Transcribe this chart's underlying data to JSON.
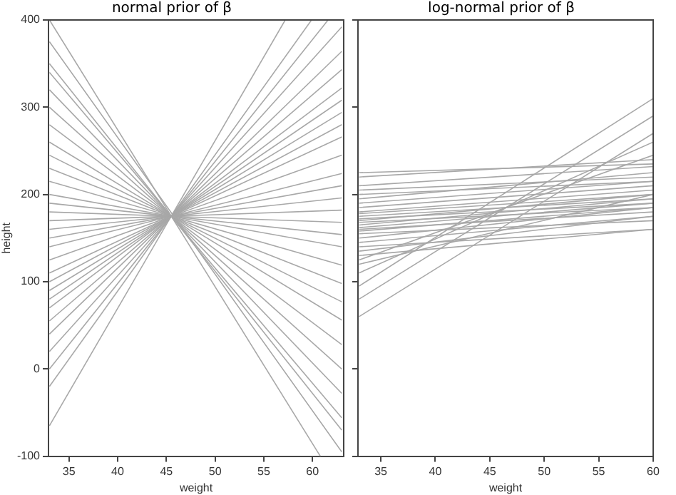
{
  "chart_data": [
    {
      "type": "line",
      "title": "normal prior of β",
      "xlabel": "weight",
      "ylabel": "height",
      "x": [
        33,
        63
      ],
      "xlim": [
        32.9,
        63.2
      ],
      "xticks": [
        35,
        40,
        45,
        50,
        55,
        60
      ],
      "ylim": [
        -100,
        400
      ],
      "yticks": [
        -100,
        0,
        100,
        200,
        300,
        400
      ],
      "grid": false,
      "legend": false,
      "marker": "none",
      "line_style": "solid",
      "series": [
        {
          "color": "#a8a8a8",
          "x": [
            33,
            60.8
          ],
          "values": [
            400,
            -100
          ]
        },
        {
          "color": "#a8a8a8",
          "values": [
            375,
            -95
          ]
        },
        {
          "color": "#a8a8a8",
          "values": [
            350,
            -70
          ]
        },
        {
          "color": "#a8a8a8",
          "values": [
            340,
            -56
          ]
        },
        {
          "color": "#a8a8a8",
          "values": [
            320,
            -28
          ]
        },
        {
          "color": "#a8a8a8",
          "values": [
            300,
            0
          ]
        },
        {
          "color": "#a8a8a8",
          "values": [
            280,
            28
          ]
        },
        {
          "color": "#a8a8a8",
          "values": [
            260,
            56
          ]
        },
        {
          "color": "#a8a8a8",
          "values": [
            245,
            77
          ]
        },
        {
          "color": "#a8a8a8",
          "values": [
            230,
            98
          ]
        },
        {
          "color": "#a8a8a8",
          "values": [
            215,
            119
          ]
        },
        {
          "color": "#a8a8a8",
          "values": [
            200,
            140
          ]
        },
        {
          "color": "#a8a8a8",
          "values": [
            190,
            154
          ]
        },
        {
          "color": "#a8a8a8",
          "values": [
            180,
            168
          ]
        },
        {
          "color": "#a8a8a8",
          "values": [
            170,
            182
          ]
        },
        {
          "color": "#a8a8a8",
          "values": [
            160,
            196
          ]
        },
        {
          "color": "#a8a8a8",
          "values": [
            150,
            210
          ]
        },
        {
          "color": "#a8a8a8",
          "values": [
            140,
            224
          ]
        },
        {
          "color": "#a8a8a8",
          "values": [
            125,
            245
          ]
        },
        {
          "color": "#a8a8a8",
          "values": [
            110,
            266
          ]
        },
        {
          "color": "#a8a8a8",
          "values": [
            100,
            280
          ]
        },
        {
          "color": "#a8a8a8",
          "values": [
            90,
            294
          ]
        },
        {
          "color": "#a8a8a8",
          "values": [
            80,
            308
          ]
        },
        {
          "color": "#a8a8a8",
          "values": [
            70,
            322
          ]
        },
        {
          "color": "#a8a8a8",
          "values": [
            55,
            343
          ]
        },
        {
          "color": "#a8a8a8",
          "values": [
            40,
            364
          ]
        },
        {
          "color": "#a8a8a8",
          "values": [
            20,
            392
          ]
        },
        {
          "color": "#a8a8a8",
          "x": [
            33,
            61.6
          ],
          "values": [
            0,
            400
          ]
        },
        {
          "color": "#a8a8a8",
          "x": [
            33,
            59.9
          ],
          "values": [
            -20,
            400
          ]
        },
        {
          "color": "#a8a8a8",
          "x": [
            33,
            57.2
          ],
          "values": [
            -65,
            400
          ]
        }
      ]
    },
    {
      "type": "line",
      "title": "log-normal prior of β",
      "xlabel": "weight",
      "x": [
        33,
        60
      ],
      "xlim": [
        32.9,
        60
      ],
      "xticks": [
        35,
        40,
        45,
        50,
        55,
        60
      ],
      "ylim": [
        -100,
        400
      ],
      "yticks": [
        -100,
        0,
        100,
        200,
        300,
        400
      ],
      "tick_labels": "x",
      "grid": false,
      "legend": false,
      "marker": "none",
      "line_style": "solid",
      "series": [
        {
          "color": "#a8a8a8",
          "values": [
            225,
            235
          ]
        },
        {
          "color": "#a8a8a8",
          "values": [
            220,
            240
          ]
        },
        {
          "color": "#a8a8a8",
          "values": [
            210,
            232
          ]
        },
        {
          "color": "#a8a8a8",
          "values": [
            205,
            220
          ]
        },
        {
          "color": "#a8a8a8",
          "values": [
            200,
            215
          ]
        },
        {
          "color": "#a8a8a8",
          "values": [
            195,
            225
          ]
        },
        {
          "color": "#a8a8a8",
          "values": [
            190,
            215
          ]
        },
        {
          "color": "#a8a8a8",
          "values": [
            185,
            210
          ]
        },
        {
          "color": "#a8a8a8",
          "values": [
            180,
            205
          ]
        },
        {
          "color": "#a8a8a8",
          "values": [
            178,
            200
          ]
        },
        {
          "color": "#a8a8a8",
          "values": [
            175,
            195
          ]
        },
        {
          "color": "#a8a8a8",
          "values": [
            172,
            190
          ]
        },
        {
          "color": "#a8a8a8",
          "values": [
            170,
            200
          ]
        },
        {
          "color": "#a8a8a8",
          "values": [
            168,
            185
          ]
        },
        {
          "color": "#a8a8a8",
          "values": [
            165,
            195
          ]
        },
        {
          "color": "#a8a8a8",
          "values": [
            162,
            190
          ]
        },
        {
          "color": "#a8a8a8",
          "values": [
            160,
            180
          ]
        },
        {
          "color": "#a8a8a8",
          "values": [
            158,
            185
          ]
        },
        {
          "color": "#a8a8a8",
          "values": [
            155,
            170
          ]
        },
        {
          "color": "#a8a8a8",
          "values": [
            150,
            185
          ]
        },
        {
          "color": "#a8a8a8",
          "values": [
            145,
            175
          ]
        },
        {
          "color": "#a8a8a8",
          "values": [
            140,
            160
          ]
        },
        {
          "color": "#a8a8a8",
          "values": [
            135,
            175
          ]
        },
        {
          "color": "#a8a8a8",
          "values": [
            130,
            160
          ]
        },
        {
          "color": "#a8a8a8",
          "values": [
            125,
            245
          ]
        },
        {
          "color": "#a8a8a8",
          "values": [
            120,
            200
          ]
        },
        {
          "color": "#a8a8a8",
          "values": [
            110,
            260
          ]
        },
        {
          "color": "#a8a8a8",
          "values": [
            95,
            310
          ]
        },
        {
          "color": "#a8a8a8",
          "values": [
            80,
            290
          ]
        },
        {
          "color": "#a8a8a8",
          "values": [
            60,
            270
          ]
        }
      ]
    }
  ]
}
